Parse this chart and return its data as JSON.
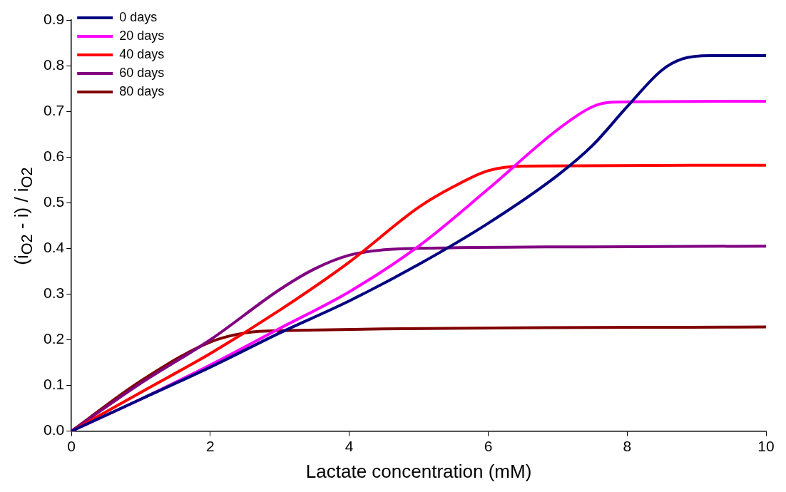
{
  "chart_data": {
    "type": "line",
    "xlabel": "Lactate concentration (mM)",
    "ylabel": "(i$_{O2}$ - i) / i$_{O2}$",
    "xlim": [
      0,
      10
    ],
    "xticks": [
      0,
      2,
      4,
      6,
      8,
      10
    ],
    "ylim": [
      0,
      0.9
    ],
    "yticks": [
      {
        "value": 0,
        "label": "0.0"
      },
      0.1,
      0.2,
      0.3,
      0.4,
      0.5,
      0.6,
      0.7,
      0.8,
      0.9
    ],
    "grid": false,
    "legend": "top left",
    "marker": "none",
    "line_style": "solid",
    "series": [
      {
        "name": "0 days",
        "color": "#000080",
        "x": [
          0,
          1,
          2,
          3,
          4,
          5,
          6,
          7,
          7.5,
          8,
          8.5,
          8.8,
          9.2,
          10
        ],
        "values": [
          0,
          0.07,
          0.14,
          0.215,
          0.285,
          0.365,
          0.455,
          0.56,
          0.625,
          0.71,
          0.79,
          0.815,
          0.822,
          0.822
        ]
      },
      {
        "name": "20 days",
        "color": "#ff00ff",
        "x": [
          0,
          1,
          2,
          3,
          4,
          5,
          6,
          7,
          7.5,
          7.8,
          10
        ],
        "values": [
          0,
          0.07,
          0.145,
          0.225,
          0.305,
          0.405,
          0.53,
          0.66,
          0.71,
          0.72,
          0.722
        ]
      },
      {
        "name": "40 days",
        "color": "#ff0000",
        "x": [
          0,
          1,
          2,
          3,
          4,
          5,
          5.5,
          6,
          6.5,
          10
        ],
        "values": [
          0,
          0.085,
          0.17,
          0.265,
          0.37,
          0.49,
          0.535,
          0.57,
          0.58,
          0.582
        ]
      },
      {
        "name": "60 days",
        "color": "#800080",
        "x": [
          0,
          1,
          2,
          3,
          3.5,
          4,
          4.5,
          5,
          10
        ],
        "values": [
          0,
          0.105,
          0.2,
          0.31,
          0.355,
          0.385,
          0.397,
          0.4,
          0.405
        ]
      },
      {
        "name": "80 days",
        "color": "#800000",
        "x": [
          0,
          1,
          2,
          2.5,
          3,
          10
        ],
        "values": [
          0,
          0.11,
          0.195,
          0.215,
          0.22,
          0.228
        ]
      }
    ]
  }
}
